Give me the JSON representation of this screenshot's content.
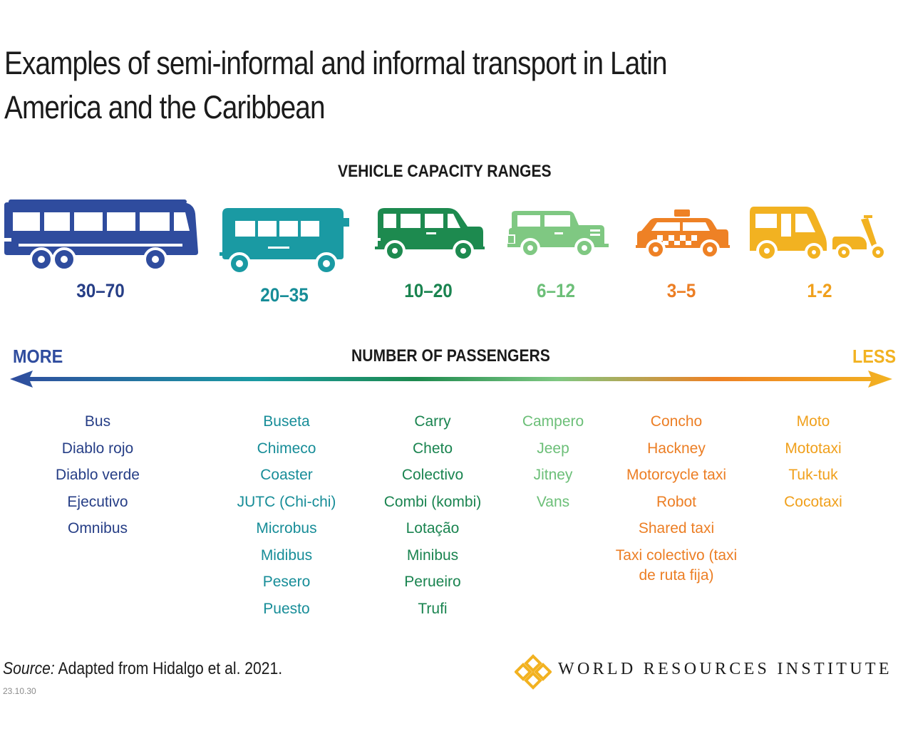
{
  "title": "Examples of semi-informal and informal transport in Latin America and the Caribbean",
  "capacity_heading": "VEHICLE CAPACITY RANGES",
  "passenger_heading": "NUMBER OF PASSENGERS",
  "axis": {
    "more": "MORE",
    "less": "LESS"
  },
  "colors": {
    "bus": "#2f4c9e",
    "buseta": "#1a9aa3",
    "carry": "#1d8a4f",
    "campero": "#7fc882",
    "concho": "#ee8125",
    "moto": "#f2b221"
  },
  "categories": [
    {
      "vehicle_icon": "bus-icon",
      "range": "30–70",
      "text_color": "#263e86",
      "items": [
        "Bus",
        "Diablo rojo",
        "Diablo verde",
        "Ejecutivo",
        "Omnibus"
      ]
    },
    {
      "vehicle_icon": "minibus-icon",
      "range": "20–35",
      "text_color": "#178d98",
      "items": [
        "Buseta",
        "Chimeco",
        "Coaster",
        "JUTC (Chi-chi)",
        "Microbus",
        "Midibus",
        "Pesero",
        "Puesto"
      ]
    },
    {
      "vehicle_icon": "van-icon",
      "range": "10–20",
      "text_color": "#1a8450",
      "items": [
        "Carry",
        "Cheto",
        "Colectivo",
        "Combi (kombi)",
        "Lotação",
        "Minibus",
        "Perueiro",
        "Trufi"
      ]
    },
    {
      "vehicle_icon": "jeep-icon",
      "range": "6–12",
      "text_color": "#6cbf78",
      "items": [
        "Campero",
        "Jeep",
        "Jitney",
        "Vans"
      ]
    },
    {
      "vehicle_icon": "taxi-icon",
      "range": "3–5",
      "text_color": "#ec7e24",
      "items": [
        "Concho",
        "Hackney",
        "Motorcycle taxi",
        "Robot",
        "Shared taxi",
        "Taxi colectivo (taxi de ruta fija)"
      ]
    },
    {
      "vehicle_icon": "tuktuk-motorcycle-icon",
      "range": "1-2",
      "text_color": "#f0a01c",
      "items": [
        "Moto",
        "Mototaxi",
        "Tuk-tuk",
        "Cocotaxi"
      ]
    }
  ],
  "source": {
    "label": "Source:",
    "text": " Adapted from Hidalgo et al. 2021."
  },
  "code": "23.10.30",
  "logo_text": "WORLD RESOURCES INSTITUTE"
}
